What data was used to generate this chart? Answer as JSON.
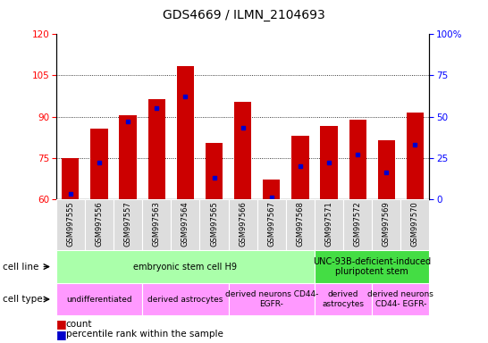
{
  "title": "GDS4669 / ILMN_2104693",
  "samples": [
    "GSM997555",
    "GSM997556",
    "GSM997557",
    "GSM997563",
    "GSM997564",
    "GSM997565",
    "GSM997566",
    "GSM997567",
    "GSM997568",
    "GSM997571",
    "GSM997572",
    "GSM997569",
    "GSM997570"
  ],
  "bar_values": [
    75.0,
    85.5,
    90.5,
    96.5,
    108.5,
    80.5,
    95.5,
    67.0,
    83.0,
    86.5,
    89.0,
    81.5,
    91.5
  ],
  "percentile_values": [
    3.0,
    22.0,
    47.0,
    55.0,
    62.0,
    13.0,
    43.0,
    1.0,
    20.0,
    22.0,
    27.0,
    16.0,
    33.0
  ],
  "ylim_left": [
    60,
    120
  ],
  "ylim_right": [
    0,
    100
  ],
  "yticks_left": [
    60,
    75,
    90,
    105,
    120
  ],
  "yticks_right": [
    0,
    25,
    50,
    75,
    100
  ],
  "bar_color": "#cc0000",
  "dot_color": "#0000cc",
  "cell_line_groups": [
    {
      "label": "embryonic stem cell H9",
      "start": 0,
      "end": 9,
      "color": "#aaffaa"
    },
    {
      "label": "UNC-93B-deficient-induced\npluripotent stem",
      "start": 9,
      "end": 13,
      "color": "#44dd44"
    }
  ],
  "cell_type_groups": [
    {
      "label": "undifferentiated",
      "start": 0,
      "end": 3,
      "color": "#ff99ff"
    },
    {
      "label": "derived astrocytes",
      "start": 3,
      "end": 6,
      "color": "#ff99ff"
    },
    {
      "label": "derived neurons CD44-\nEGFR-",
      "start": 6,
      "end": 9,
      "color": "#ff99ff"
    },
    {
      "label": "derived\nastrocytes",
      "start": 9,
      "end": 11,
      "color": "#ff99ff"
    },
    {
      "label": "derived neurons\nCD44- EGFR-",
      "start": 11,
      "end": 13,
      "color": "#ff99ff"
    }
  ],
  "legend_count_color": "#cc0000",
  "legend_percentile_color": "#0000cc",
  "row_label_cell_line": "cell line",
  "row_label_cell_type": "cell type",
  "xtick_bg": "#dddddd"
}
